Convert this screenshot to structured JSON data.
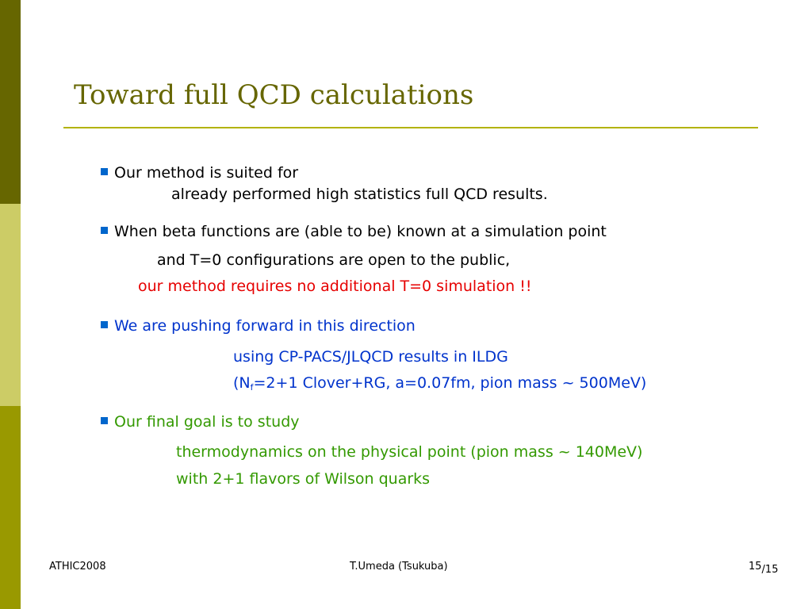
{
  "slide": {
    "title": "Toward full QCD calculations",
    "bullet1": {
      "line1": "Our method is suited for",
      "line2": "already performed high statistics full QCD results."
    },
    "bullet2": {
      "line1": "When beta functions are (able to be) known at a simulation point",
      "line2": "and T=0 configurations are open to the public,",
      "line3": "our method requires no additional T=0 simulation !!"
    },
    "bullet3": {
      "line1": "We are pushing forward in this direction",
      "line2": "using CP-PACS/JLQCD results in ILDG",
      "line3_prefix": "(N",
      "line3_sub": "f",
      "line3_rest": "=2+1 Clover+RG, a=0.07fm, pion mass ~ 500MeV)"
    },
    "bullet4": {
      "line1": "Our final goal is to study",
      "line2": "thermodynamics on the physical point (pion mass ~ 140MeV)",
      "line3": "with 2+1 flavors of Wilson quarks"
    }
  },
  "footer": {
    "left": "ATHIC2008",
    "center": "T.Umeda (Tsukuba)",
    "page": "15",
    "total": "/15"
  },
  "colors": {
    "sidebar_dark": "#666600",
    "sidebar_light": "#cccc66",
    "sidebar_mid": "#999900",
    "title": "#666600",
    "bullet": "#0066cc",
    "red": "#e60000",
    "blue": "#0033cc",
    "green": "#339900"
  },
  "icons": {
    "bullet": "square-bullet-icon"
  }
}
